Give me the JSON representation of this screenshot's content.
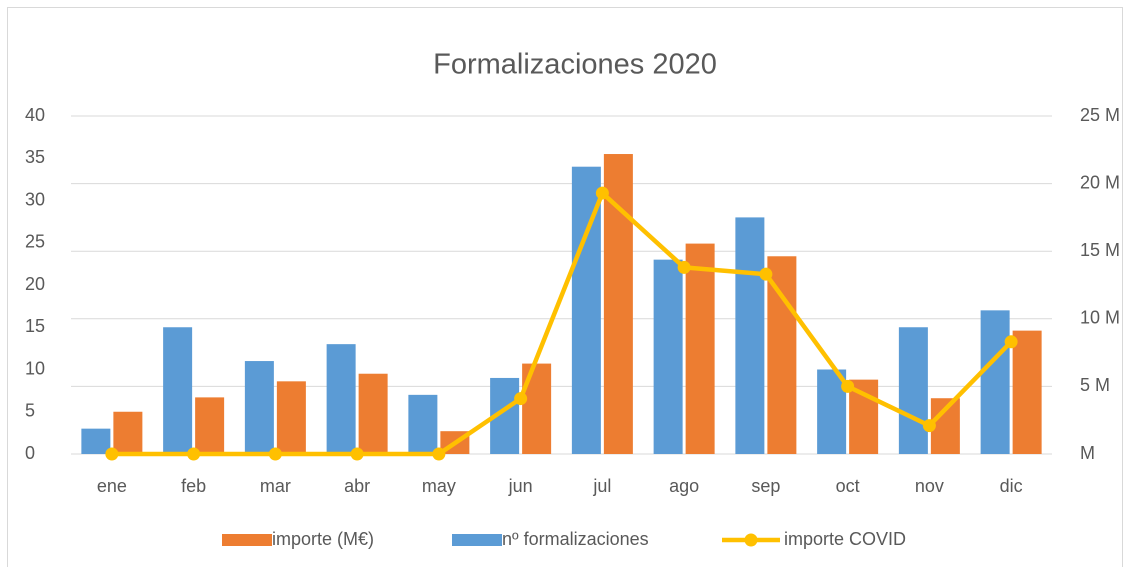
{
  "chart_data": {
    "type": "bar",
    "title": "Formalizaciones 2020",
    "categories": [
      "ene",
      "feb",
      "mar",
      "abr",
      "may",
      "jun",
      "jul",
      "ago",
      "sep",
      "oct",
      "nov",
      "dic"
    ],
    "series": [
      {
        "name": "importe (M€)",
        "color": "#ed7d31",
        "type": "bar",
        "values": [
          5,
          6.7,
          8.6,
          9.5,
          2.7,
          10.7,
          35.5,
          24.9,
          23.4,
          8.8,
          6.6,
          14.6
        ]
      },
      {
        "name": "nº formalizaciones",
        "color": "#5b9bd5",
        "type": "bar",
        "values": [
          3,
          15,
          11,
          13,
          7,
          9,
          34,
          23,
          28,
          10,
          15,
          17
        ]
      },
      {
        "name": "importe COVID",
        "color": "#ffc000",
        "type": "line",
        "axis": "y2",
        "values": [
          0,
          0,
          0,
          0,
          0,
          4.1,
          19.3,
          13.8,
          13.3,
          5,
          2.1,
          8.3
        ]
      }
    ],
    "ylim": [
      0,
      40
    ],
    "yticks": [
      0,
      5,
      10,
      15,
      20,
      25,
      30,
      35,
      40
    ],
    "y2lim": [
      0,
      25
    ],
    "y2ticks": [
      {
        "value": 0,
        "label": "M"
      },
      {
        "value": 5,
        "label": "5 M"
      },
      {
        "value": 10,
        "label": "10 M"
      },
      {
        "value": 15,
        "label": "15 M"
      },
      {
        "value": 20,
        "label": "20 M"
      },
      {
        "value": 25,
        "label": "25 M"
      }
    ],
    "grid": true,
    "legend": "bottom"
  }
}
